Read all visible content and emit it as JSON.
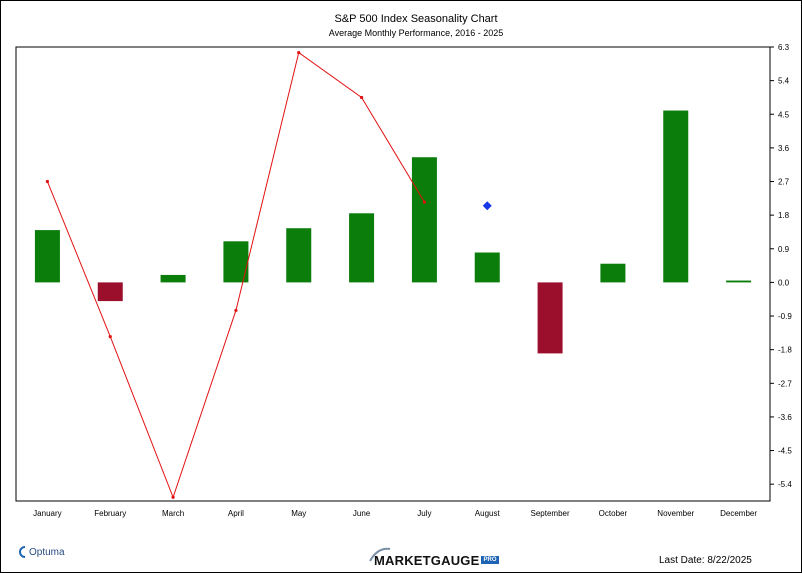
{
  "header": {
    "title": "S&P 500 Index Seasonality Chart",
    "subtitle": "Average Monthly Performance, 2016 - 2025"
  },
  "footer": {
    "brand_left": "Optuma",
    "brand_center": "MARKETGAUGE",
    "brand_center_badge": "PRO",
    "last_date": "Last Date: 8/22/2025"
  },
  "colors": {
    "positive_bar": "#0a7d0a",
    "negative_bar": "#9c0f2c",
    "line": "#e31212",
    "marker": "#1736e6"
  },
  "chart_data": {
    "type": "bar",
    "categories": [
      "January",
      "February",
      "March",
      "April",
      "May",
      "June",
      "July",
      "August",
      "September",
      "October",
      "November",
      "December"
    ],
    "series": [
      {
        "type": "bar",
        "values": [
          1.4,
          -0.5,
          0.2,
          1.1,
          1.45,
          1.85,
          3.35,
          0.8,
          -1.9,
          0.5,
          4.6,
          0.05
        ]
      },
      {
        "type": "line",
        "values": [
          2.7,
          -1.45,
          -5.75,
          -0.75,
          6.15,
          4.95,
          2.15,
          null,
          null,
          null,
          null,
          null
        ]
      },
      {
        "type": "scatter",
        "points": [
          {
            "category": "August",
            "value": 2.05
          }
        ]
      }
    ],
    "yticks": [
      "6.3",
      "5.4",
      "4.5",
      "3.6",
      "2.7",
      "1.8",
      "0.9",
      "0.0",
      "-0.9",
      "-1.8",
      "-2.7",
      "-3.6",
      "-4.5",
      "-5.4"
    ],
    "ylim": [
      -5.85,
      6.3
    ],
    "grid": false
  }
}
